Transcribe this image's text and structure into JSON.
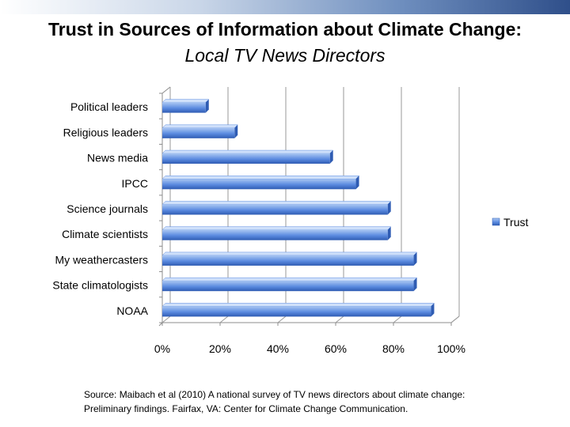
{
  "slide": {
    "title": "Trust in Sources of Information about Climate Change:",
    "subtitle": "Local TV News Directors",
    "source_line1": "Source: Maibach et al (2010) A national survey of TV news directors about climate change:",
    "source_line2": "Preliminary findings. Fairfax, VA: Center for Climate Change Communication."
  },
  "colors": {
    "bar_light": "#a9c6f2",
    "bar_mid": "#5b8be0",
    "bar_dark": "#2f5cb3",
    "bar_top": "#cfe0fa",
    "grid": "#9a9a9a",
    "axis": "#8c8c8c"
  },
  "chart_data": {
    "type": "bar",
    "orientation": "horizontal",
    "title": "Trust in Sources of Information about Climate Change: Local TV News Directors",
    "categories": [
      "Political leaders",
      "Religious leaders",
      "News media",
      "IPCC",
      "Science journals",
      "Climate scientists",
      "My weathercasters",
      "State climatologists",
      "NOAA"
    ],
    "series": [
      {
        "name": "Trust",
        "values": [
          15,
          25,
          58,
          67,
          78,
          78,
          87,
          87,
          93
        ]
      }
    ],
    "xlim": [
      0,
      100
    ],
    "ticks": [
      0,
      20,
      40,
      60,
      80,
      100
    ],
    "tick_labels": [
      "0%",
      "20%",
      "40%",
      "60%",
      "80%",
      "100%"
    ],
    "legend": {
      "position": "right",
      "entries": [
        "Trust"
      ]
    },
    "grid": true
  }
}
